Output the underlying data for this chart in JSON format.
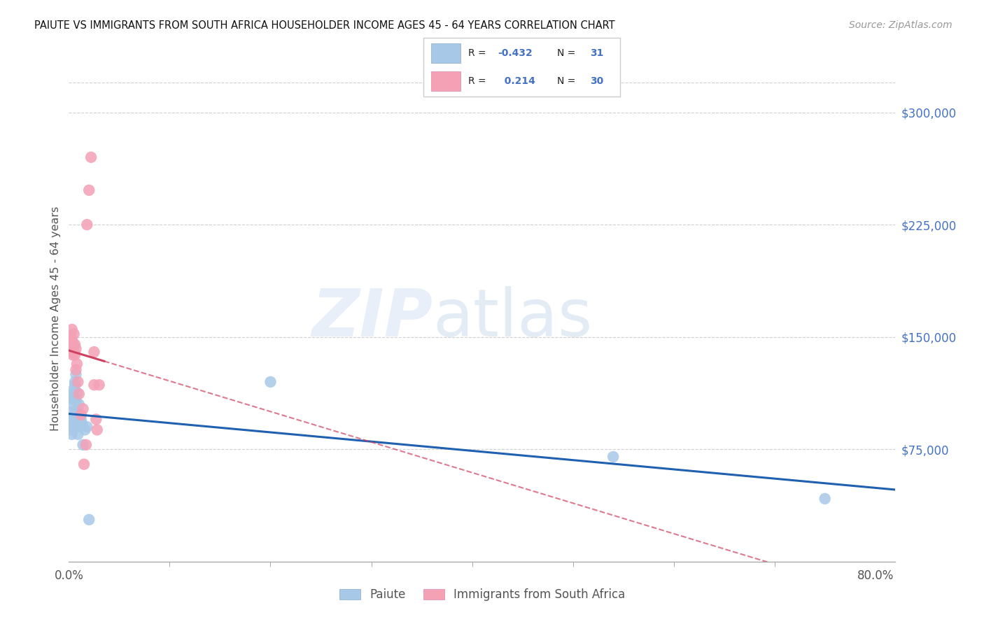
{
  "title": "PAIUTE VS IMMIGRANTS FROM SOUTH AFRICA HOUSEHOLDER INCOME AGES 45 - 64 YEARS CORRELATION CHART",
  "source": "Source: ZipAtlas.com",
  "ylabel": "Householder Income Ages 45 - 64 years",
  "ytick_values": [
    75000,
    150000,
    225000,
    300000
  ],
  "ymin": 0,
  "ymax": 325000,
  "xmin": 0.0,
  "xmax": 0.82,
  "color_blue": "#a8c8e8",
  "color_pink": "#f4a0b5",
  "trendline_blue": "#2060b0",
  "trendline_pink": "#d04060",
  "grid_color": "#d0d0d0",
  "paiute_x": [
    0.001,
    0.002,
    0.002,
    0.003,
    0.003,
    0.004,
    0.004,
    0.004,
    0.005,
    0.005,
    0.005,
    0.006,
    0.006,
    0.007,
    0.007,
    0.007,
    0.008,
    0.008,
    0.009,
    0.009,
    0.01,
    0.011,
    0.012,
    0.013,
    0.014,
    0.016,
    0.018,
    0.02,
    0.2,
    0.54,
    0.75
  ],
  "paiute_y": [
    90000,
    88000,
    95000,
    85000,
    100000,
    110000,
    105000,
    112000,
    115000,
    108000,
    95000,
    120000,
    118000,
    125000,
    100000,
    108000,
    113000,
    92000,
    85000,
    90000,
    105000,
    92000,
    95000,
    92000,
    78000,
    88000,
    90000,
    28000,
    120000,
    70000,
    42000
  ],
  "sa_x": [
    0.001,
    0.001,
    0.002,
    0.002,
    0.003,
    0.003,
    0.003,
    0.004,
    0.004,
    0.005,
    0.005,
    0.006,
    0.006,
    0.007,
    0.007,
    0.008,
    0.009,
    0.01,
    0.012,
    0.014,
    0.015,
    0.017,
    0.018,
    0.02,
    0.022,
    0.025,
    0.025,
    0.027,
    0.028,
    0.03
  ],
  "sa_y": [
    140000,
    148000,
    140000,
    150000,
    142000,
    148000,
    155000,
    138000,
    145000,
    140000,
    152000,
    138000,
    145000,
    128000,
    142000,
    132000,
    120000,
    112000,
    98000,
    102000,
    65000,
    78000,
    225000,
    248000,
    270000,
    118000,
    140000,
    95000,
    88000,
    118000
  ]
}
